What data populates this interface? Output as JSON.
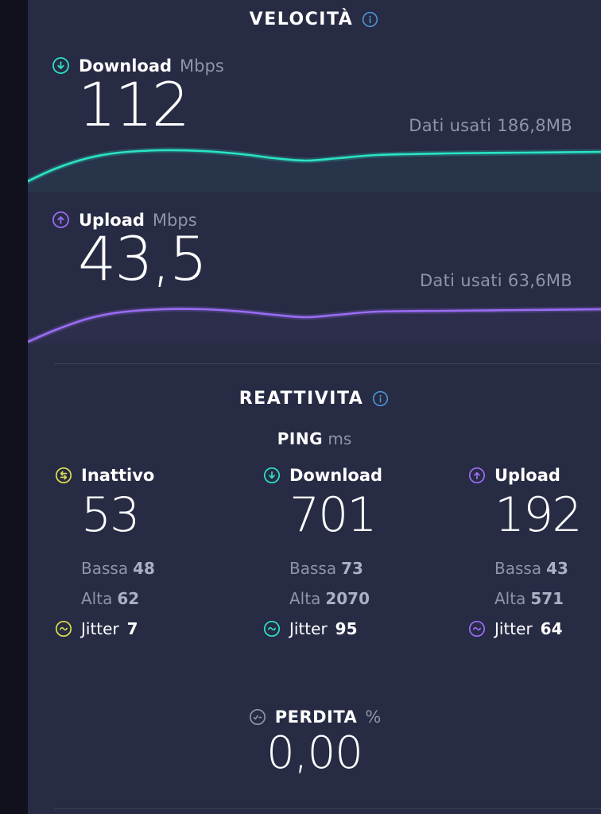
{
  "colors": {
    "bg": "#272b44",
    "edge": "#10111c",
    "white": "#ffffff",
    "gray": "#8e94aa",
    "grayStrong": "#abb1c5",
    "divider": "#3b4056",
    "teal": "#2ae4c5",
    "purple": "#9b6df5",
    "yellow": "#dbe14c",
    "blue": "#4a96d2"
  },
  "velocita": {
    "title": "VELOCITÀ",
    "download": {
      "label": "Download",
      "unit": "Mbps",
      "value": "112",
      "data_used_label": "Dati usati",
      "data_used_value": "186,8MB",
      "curve": [
        [
          35,
          50
        ],
        [
          70,
          34
        ],
        [
          110,
          21
        ],
        [
          150,
          14
        ],
        [
          205,
          11
        ],
        [
          255,
          12
        ],
        [
          305,
          16
        ],
        [
          345,
          21
        ],
        [
          385,
          24
        ],
        [
          425,
          21
        ],
        [
          475,
          17
        ],
        [
          560,
          15
        ],
        [
          660,
          14
        ],
        [
          756,
          13
        ]
      ]
    },
    "upload": {
      "label": "Upload",
      "unit": "Mbps",
      "value": "43,5",
      "data_used_label": "Dati usati",
      "data_used_value": "63,6MB",
      "curve": [
        [
          35,
          62
        ],
        [
          70,
          47
        ],
        [
          110,
          33
        ],
        [
          150,
          25
        ],
        [
          205,
          21
        ],
        [
          255,
          21
        ],
        [
          305,
          24
        ],
        [
          345,
          28
        ],
        [
          385,
          31
        ],
        [
          425,
          28
        ],
        [
          475,
          24
        ],
        [
          560,
          23
        ],
        [
          660,
          22
        ],
        [
          756,
          21
        ]
      ]
    }
  },
  "reattivita": {
    "title": "REATTIVITA",
    "ping": {
      "label": "PING",
      "unit": "ms"
    },
    "columns": [
      {
        "label": "Inattivo",
        "value": "53",
        "low_label": "Bassa",
        "low_value": "48",
        "high_label": "Alta",
        "high_value": "62",
        "jitter_label": "Jitter",
        "jitter_value": "7"
      },
      {
        "label": "Download",
        "value": "701",
        "low_label": "Bassa",
        "low_value": "73",
        "high_label": "Alta",
        "high_value": "2070",
        "jitter_label": "Jitter",
        "jitter_value": "95"
      },
      {
        "label": "Upload",
        "value": "192",
        "low_label": "Bassa",
        "low_value": "43",
        "high_label": "Alta",
        "high_value": "571",
        "jitter_label": "Jitter",
        "jitter_value": "64"
      }
    ],
    "perdita": {
      "label": "PERDITA",
      "unit": "%",
      "value": "0,00"
    }
  }
}
